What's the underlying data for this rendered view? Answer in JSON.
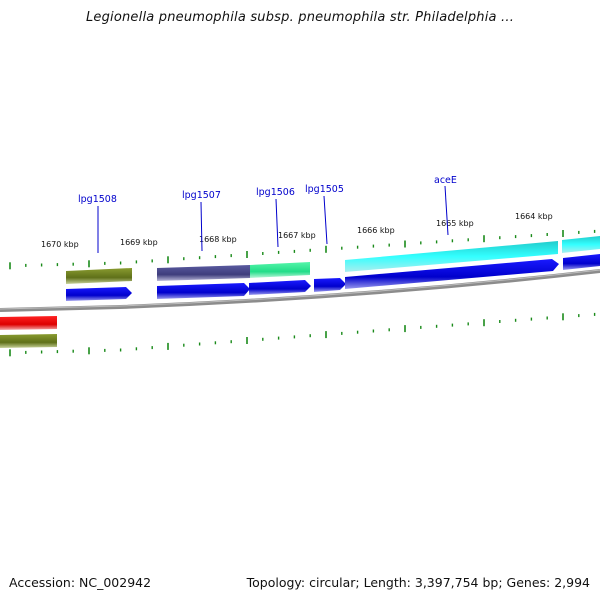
{
  "title": "Legionella pneumophila subsp. pneumophila str. Philadelphia ...",
  "footer": {
    "accession": "Accession: NC_002942",
    "summary": "Topology: circular; Length: 3,397,754 bp; Genes: 2,994"
  },
  "kbp_labels": [
    "1670 kbp",
    "1669 kbp",
    "1668 kbp",
    "1667 kbp",
    "1666 kbp",
    "1665 kbp",
    "1664 kbp"
  ],
  "gene_names": [
    "lpg1508",
    "lpg1507",
    "lpg1506",
    "lpg1505",
    "aceE"
  ],
  "colors": {
    "backbone": "#8c8c8c",
    "tick": "#1a8a1a",
    "gene_arrow": "#0000dd",
    "label_line": "#0000cc",
    "features": [
      "#6b7d1f",
      "#4b4a8c",
      "#33ee99",
      "#22dddd",
      "#22dddd",
      "#ee1111",
      "#6b7d1f"
    ]
  }
}
